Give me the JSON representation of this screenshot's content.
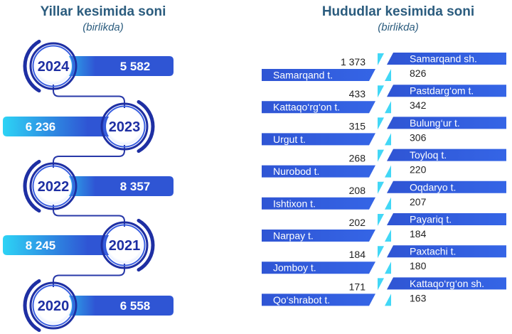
{
  "left_panel": {
    "title": "Yillar kesimida soni",
    "subtitle": "(birlikda)"
  },
  "right_panel": {
    "title": "Hududlar kesimida soni",
    "subtitle": "(birlikda)"
  },
  "chart_data": [
    {
      "type": "bar",
      "title": "Yillar kesimida soni",
      "subtitle": "(birlikda)",
      "categories": [
        "2024",
        "2023",
        "2022",
        "2021",
        "2020"
      ],
      "values": [
        5582,
        6236,
        8357,
        8245,
        6558
      ],
      "value_labels": [
        "5 582",
        "6 236",
        "8 357",
        "8 245",
        "6 558"
      ]
    },
    {
      "type": "bar",
      "title": "Hududlar kesimida soni",
      "subtitle": "(birlikda)",
      "categories": [
        "Samarqand t.",
        "Samarqand sh.",
        "Kattaqo‘rg‘on t.",
        "Pastdarg‘om t.",
        "Urgut t.",
        "Bulung‘ur t.",
        "Nurobod t.",
        "Toyloq t.",
        "Ishtixon t.",
        "Oqdaryo t.",
        "Narpay t.",
        "Payariq t.",
        "Jomboy t.",
        "Paxtachi t.",
        "Qo‘shrabot t.",
        "Kattaqo‘rg‘on sh."
      ],
      "values": [
        1373,
        826,
        433,
        342,
        315,
        306,
        268,
        220,
        208,
        207,
        202,
        184,
        184,
        180,
        171,
        163
      ],
      "value_labels": [
        "1 373",
        "826",
        "433",
        "342",
        "315",
        "306",
        "268",
        "220",
        "208",
        "207",
        "202",
        "184",
        "184",
        "180",
        "171",
        "163"
      ]
    }
  ],
  "colors": {
    "title": "#2b5c7e",
    "bar_dark": "#2f55d4",
    "bar_light": "#2dd3f5",
    "ring_dark": "#1e2fa3",
    "ring_light": "#3a5fe0",
    "connector": "#2838a8",
    "label_text": "#222222"
  }
}
